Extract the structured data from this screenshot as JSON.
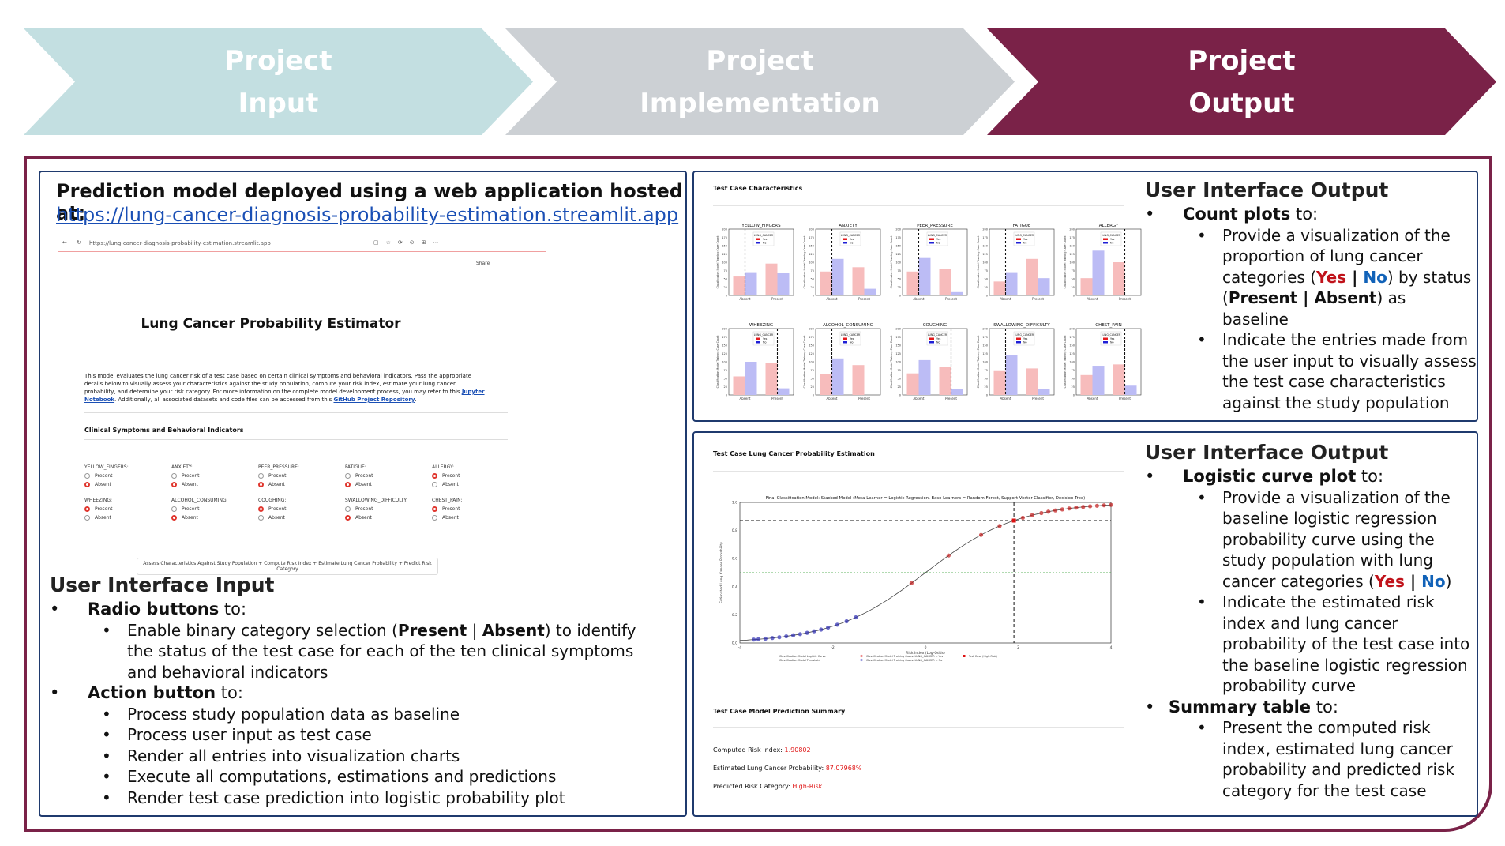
{
  "stages": [
    {
      "line1": "Project",
      "line2": "Input",
      "fill": "#c3dfe1",
      "text_color": "#ffffff"
    },
    {
      "line1": "Project",
      "line2": "Implementation",
      "fill": "#ccd0d4",
      "text_color": "#ffffff"
    },
    {
      "line1": "Project",
      "line2": "Output",
      "fill": "#7a2248",
      "text_color": "#ffffff"
    }
  ],
  "input_panel": {
    "heading": "Prediction model deployed using a web application hosted at:",
    "url": "https://lung-cancer-diagnosis-probability-estimation.streamlit.app",
    "app_screenshot": {
      "address": "https://lung-cancer-diagnosis-probability-estimation.streamlit.app",
      "share": "Share",
      "title": "Lung Cancer Probability Estimator",
      "intro": "This model evaluates the lung cancer risk of a test case based on certain clinical symptoms and behavioral indicators. Pass the appropriate details below to visually assess your characteristics against the study population, compute your risk index, estimate your lung cancer probability, and determine your risk category. For more information on the complete model development process, you may refer to this",
      "notebook_link": "Jupyter Notebook",
      "intro2": ". Additionally, all associated datasets and code files can be accessed from this",
      "repo_link": "GitHub Project Repository",
      "section": "Clinical Symptoms and Behavioral Indicators",
      "present": "Present",
      "absent": "Absent",
      "fields": [
        {
          "name": "YELLOW_FINGERS:",
          "sel": "absent"
        },
        {
          "name": "ANXIETY:",
          "sel": "absent"
        },
        {
          "name": "PEER_PRESSURE:",
          "sel": "absent"
        },
        {
          "name": "FATIGUE:",
          "sel": "absent"
        },
        {
          "name": "ALLERGY:",
          "sel": "present"
        },
        {
          "name": "WHEEZING:",
          "sel": "present"
        },
        {
          "name": "ALCOHOL_CONSUMING:",
          "sel": "absent"
        },
        {
          "name": "COUGHING:",
          "sel": "present"
        },
        {
          "name": "SWALLOWING_DIFFICULTY:",
          "sel": "absent"
        },
        {
          "name": "CHEST_PAIN:",
          "sel": "present"
        }
      ],
      "button": "Assess Characteristics Against Study Population + Compute Risk Index + Estimate Lung Cancer Probability + Predict Risk Category"
    },
    "ui_title": "User Interface Input",
    "radio_title": "Radio buttons",
    "radio_suffix": " to:",
    "radio_sub_pre": "Enable binary category selection (",
    "radio_present": "Present",
    "radio_sep": " | ",
    "radio_absent": "Absent",
    "radio_sub_post": ") to identify the status of the test case for each of the ten clinical symptoms and behavioral indicators",
    "action_title": "Action button",
    "action_suffix": " to:",
    "action_items": [
      "Process study population data as baseline",
      "Process user input as test case",
      "Render all entries into visualization charts",
      "Execute all computations, estimations and predictions",
      "Render test case prediction into logistic probability plot"
    ]
  },
  "count_panel": {
    "chart_title": "Test Case Characteristics",
    "ui_title": "User Interface Output",
    "bullet_title": "Count plots",
    "bullet_suffix": " to:",
    "sub1_pre": "Provide a visualization of the proportion of lung cancer categories (",
    "yes": "Yes",
    "sep": " | ",
    "no": "No",
    "sub1_mid": ") by status (",
    "present": "Present",
    "absent": "Absent",
    "sub1_post": ") as baseline",
    "sub2": "Indicate the entries made from the user input to visually assess the test case characteristics against the study population"
  },
  "chart_data": [
    {
      "type": "bar",
      "title": "Test Case Characteristics",
      "ylabel": "Classification Model Training Case Count",
      "ylim": [
        0,
        200
      ],
      "categories": [
        "Absent",
        "Present"
      ],
      "legend_title": "LUNG_CANCER",
      "legend": [
        "Yes",
        "No"
      ],
      "colors": {
        "Yes": "#f7bcbc",
        "No": "#bcbcf5"
      },
      "subplots": [
        {
          "name": "YELLOW_FINGERS",
          "yes": [
            57,
            96
          ],
          "no": [
            70,
            67
          ],
          "marker": "Absent"
        },
        {
          "name": "ANXIETY",
          "yes": [
            72,
            85
          ],
          "no": [
            110,
            20
          ],
          "marker": "Absent"
        },
        {
          "name": "PEER_PRESSURE",
          "yes": [
            72,
            80
          ],
          "no": [
            115,
            10
          ],
          "marker": "Absent"
        },
        {
          "name": "FATIGUE",
          "yes": [
            42,
            110
          ],
          "no": [
            70,
            52
          ],
          "marker": "Absent"
        },
        {
          "name": "ALLERGY",
          "yes": [
            52,
            100
          ],
          "no": [
            135,
            0
          ],
          "marker": "Present"
        },
        {
          "name": "WHEEZING",
          "yes": [
            56,
            96
          ],
          "no": [
            100,
            20
          ],
          "marker": "Present"
        },
        {
          "name": "ALCOHOL_CONSUMING",
          "yes": [
            62,
            90
          ],
          "no": [
            110,
            0
          ],
          "marker": "Absent"
        },
        {
          "name": "COUGHING",
          "yes": [
            65,
            85
          ],
          "no": [
            105,
            18
          ],
          "marker": "Present"
        },
        {
          "name": "SWALLOWING_DIFFICULTY",
          "yes": [
            72,
            80
          ],
          "no": [
            120,
            18
          ],
          "marker": "Absent"
        },
        {
          "name": "CHEST_PAIN",
          "yes": [
            60,
            92
          ],
          "no": [
            88,
            28
          ],
          "marker": "Present"
        }
      ]
    },
    {
      "type": "line",
      "title": "Final Classification Model: Stacked Model (Meta-Learner = Logistic Regression, Base Learners = Random Forest, Support Vector Classifier, Decision Tree)",
      "xlabel": "Risk Index (Log-Odds)",
      "ylabel": "Estimated Lung Cancer Probability",
      "xlim": [
        -4,
        4
      ],
      "ylim": [
        0,
        1
      ],
      "xticks": [
        -4,
        -2,
        0,
        2,
        4
      ],
      "yticks": [
        0.0,
        0.2,
        0.4,
        0.6,
        0.8,
        1.0
      ],
      "threshold": 0.5,
      "test_case": {
        "x": 1.90802,
        "y": 0.8707968
      },
      "legend": [
        "Classification Model Logistic Curve",
        "Classification Model Threshold",
        "Classification Model Training Cases: LUNG_CANCER = Yes",
        "Classification Model Training Cases: LUNG_CANCER = No",
        "Test Case (High-Risk)"
      ],
      "no_points": [
        -3.7,
        -3.6,
        -3.45,
        -3.3,
        -3.15,
        -3.0,
        -2.85,
        -2.7,
        -2.55,
        -2.4,
        -2.25,
        -2.1,
        -1.9,
        -1.7,
        -1.5
      ],
      "yes_points": [
        -0.3,
        0.5,
        1.2,
        1.6,
        2.1,
        2.3,
        2.5,
        2.65,
        2.8,
        2.95,
        3.1,
        3.25,
        3.4,
        3.55,
        3.7,
        3.85,
        4.0
      ]
    }
  ],
  "logistic_panel": {
    "chart_title": "Test Case Lung Cancer Probability Estimation",
    "summary_title": "Test Case Model Prediction Summary",
    "risk_label": "Computed Risk Index: ",
    "risk_value": "1.90802",
    "prob_label": "Estimated Lung Cancer Probability: ",
    "prob_value": "87.07968%",
    "cat_label": "Predicted Risk Category: ",
    "cat_value": "High-Risk",
    "ui_title": "User Interface Output",
    "b1_title": "Logistic curve plot",
    "b1_suffix": " to:",
    "b1_sub1_pre": "Provide a visualization of the baseline logistic regression probability curve using the study population with lung cancer categories (",
    "yes": "Yes",
    "sep": " | ",
    "no": "No",
    "b1_sub1_post": ")",
    "b1_sub2": "Indicate the estimated risk index and lung cancer probability of the test case into the baseline logistic regression probability curve",
    "b2_title": "Summary table",
    "b2_suffix": " to:",
    "b2_sub1": "Present the computed risk index, estimated lung cancer probability and predicted risk category for the test case"
  }
}
